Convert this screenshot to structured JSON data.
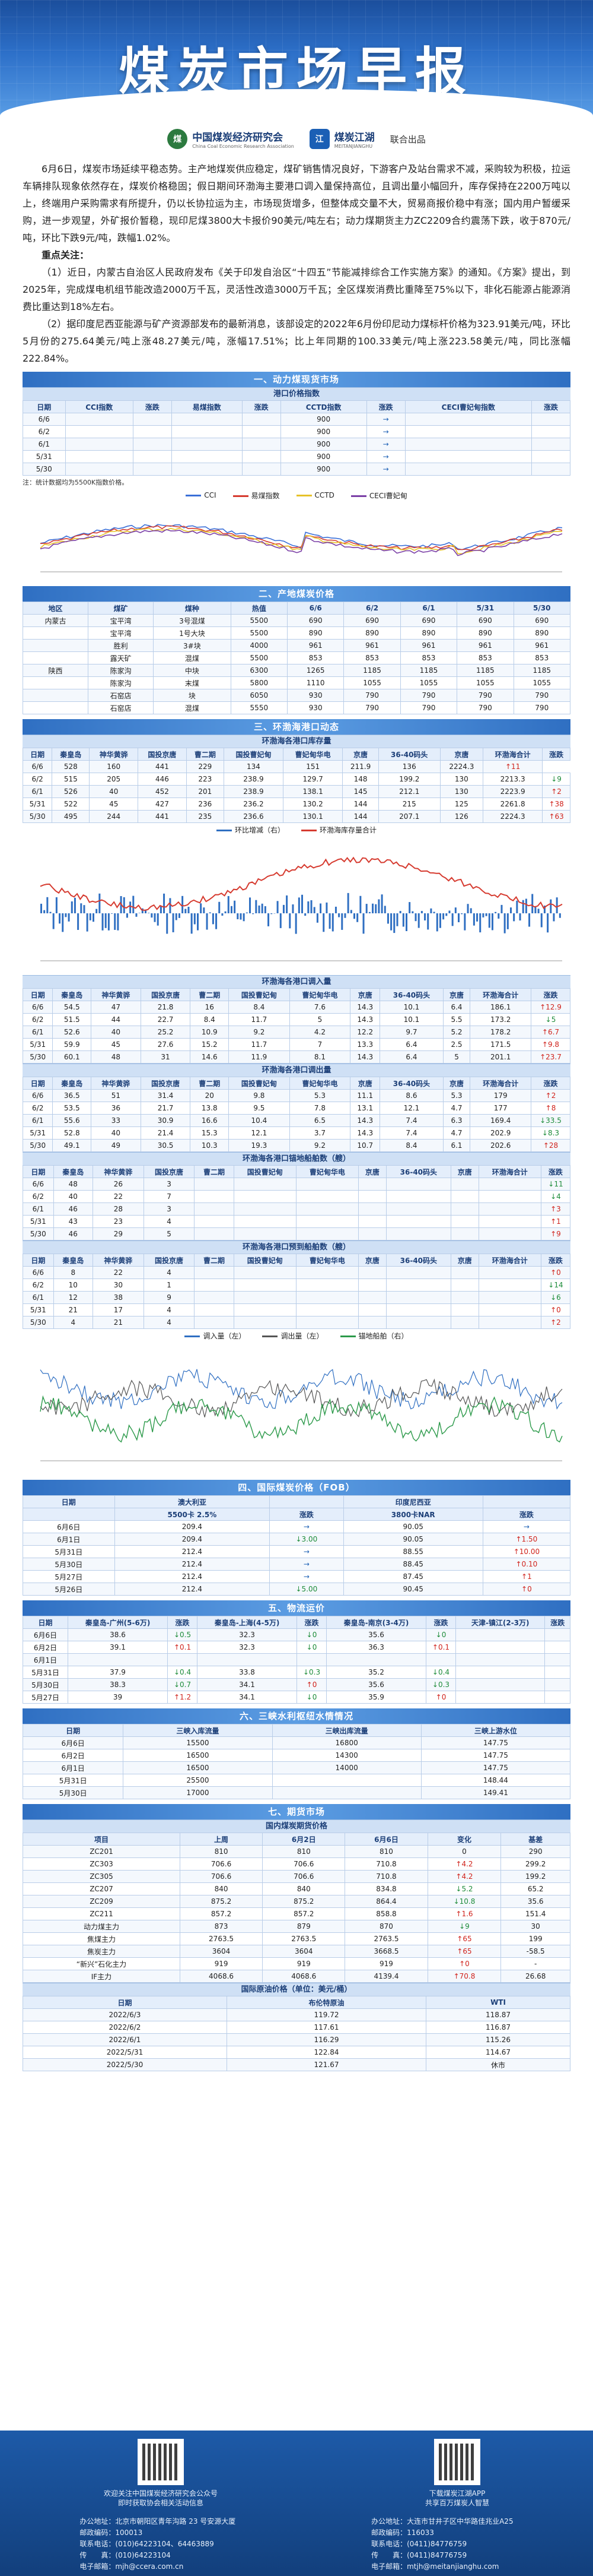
{
  "hero": {
    "title": "煤炭市场早报"
  },
  "logos": {
    "cceri_cn": "中国煤炭经济研究会",
    "cceri_en": "China Coal Economic Research Association",
    "mtjh_cn": "煤炭江湖",
    "mtjh_en": "MEITANJIANGHU",
    "joint": "联合出品"
  },
  "intro": {
    "p1": "6月6日，煤炭市场延续平稳态势。主产地煤炭供应稳定，煤矿销售情况良好，下游客户及站台需求不减，采购较为积极，拉运车辆排队现象依然存在，煤炭价格稳固；假日期间环渤海主要港口调入量保持高位，且调出量小幅回升，库存保持在2200万吨以上，终端用户采购需求有所提升，仍以长协拉运为主，市场现货增多，但整体成交量不大，贸易商报价稳中有涨；国内用户暂缓采购，进一步观望，外矿报价暂稳，现印尼煤3800大卡报价90美元/吨左右；动力煤期货主力ZC2209合约震荡下跌，收于870元/吨，环比下跌9元/吨，跌幅1.02%。",
    "kp_title": "重点关注：",
    "kp1": "（1）近日，内蒙古自治区人民政府发布《关于印发自治区“十四五”节能减排综合工作实施方案》的通知。《方案》提出，到2025年，完成煤电机组节能改造2000万千瓦，灵活性改造3000万千瓦；全区煤炭消费比重降至75%以下，非化石能源占能源消费比重达到18%左右。",
    "kp2": "（2）据印度尼西亚能源与矿产资源部发布的最新消息，该部设定的2022年6月份印尼动力煤标杆价格为323.91美元/吨，环比5月份的275.64美元/吨上涨48.27美元/吨，涨幅17.51%；比上年同期的100.33美元/吨上涨223.58美元/吨，同比涨幅222.84%。"
  },
  "sec1": {
    "title": "一、动力煤现货市场",
    "sub": "港口价格指数",
    "headers": [
      "日期",
      "CCI指数",
      "涨跌",
      "易煤指数",
      "涨跌",
      "CCTD指数",
      "涨跌",
      "CECI曹妃甸指数",
      "涨跌"
    ],
    "rows": [
      [
        "6/6",
        "",
        "",
        "",
        "",
        "900",
        "→",
        "",
        ""
      ],
      [
        "6/2",
        "",
        "",
        "",
        "",
        "900",
        "→",
        "",
        ""
      ],
      [
        "6/1",
        "",
        "",
        "",
        "",
        "900",
        "→",
        "",
        ""
      ],
      [
        "5/31",
        "",
        "",
        "",
        "",
        "900",
        "→",
        "",
        ""
      ],
      [
        "5/30",
        "",
        "",
        "",
        "",
        "900",
        "→",
        "",
        ""
      ]
    ],
    "note": "注：统计数据均为5500K指数价格。"
  },
  "chart1": {
    "legend": [
      "CCI",
      "易煤指数",
      "CCTD",
      "CECI曹妃甸"
    ],
    "colors": [
      "#3a6fd8",
      "#d63b30",
      "#e6c229",
      "#7b3fa6"
    ]
  },
  "sec2": {
    "title": "二、产地煤炭价格",
    "headers": [
      "地区",
      "煤矿",
      "煤种",
      "热值",
      "6/6",
      "6/2",
      "6/1",
      "5/31",
      "5/30"
    ],
    "rows": [
      [
        "内蒙古",
        "宝平湾",
        "3号混煤",
        "5500",
        "690",
        "690",
        "690",
        "690",
        "690"
      ],
      [
        "",
        "宝平湾",
        "1号大块",
        "5500",
        "890",
        "890",
        "890",
        "890",
        "890"
      ],
      [
        "",
        "胜利",
        "3#块",
        "4000",
        "961",
        "961",
        "961",
        "961",
        "961"
      ],
      [
        "",
        "露天矿",
        "混煤",
        "5500",
        "853",
        "853",
        "853",
        "853",
        "853"
      ],
      [
        "陕西",
        "陈家沟",
        "中块",
        "6300",
        "1265",
        "1185",
        "1185",
        "1185",
        "1185"
      ],
      [
        "",
        "陈家沟",
        "末煤",
        "5800",
        "1110",
        "1055",
        "1055",
        "1055",
        "1055"
      ],
      [
        "",
        "石窑店",
        "块",
        "6050",
        "930",
        "790",
        "790",
        "790",
        "790"
      ],
      [
        "",
        "石窑店",
        "混煤",
        "5550",
        "930",
        "790",
        "790",
        "790",
        "790"
      ]
    ]
  },
  "sec3": {
    "title": "三、环渤海港口动态",
    "sub1": "环渤海各港口库存量",
    "headers1": [
      "日期",
      "秦皇岛",
      "神华黄骅",
      "国投京唐",
      "曹二期",
      "国投曹妃甸",
      "曹妃甸华电",
      "京唐",
      "36-40码头",
      "京唐",
      "环渤海合计",
      "涨跌"
    ],
    "rows1": [
      [
        "6/6",
        "528",
        "160",
        "441",
        "229",
        "134",
        "151",
        "211.9",
        "136",
        "2224.3",
        "↑11"
      ],
      [
        "6/2",
        "515",
        "205",
        "446",
        "223",
        "238.9",
        "129.7",
        "148",
        "199.2",
        "130",
        "2213.3",
        "↓9"
      ],
      [
        "6/1",
        "526",
        "40",
        "452",
        "201",
        "238.9",
        "138.1",
        "145",
        "212.1",
        "130",
        "2223.9",
        "↑2"
      ],
      [
        "5/31",
        "522",
        "45",
        "427",
        "236",
        "236.2",
        "130.2",
        "144",
        "215",
        "125",
        "2261.8",
        "↑38"
      ],
      [
        "5/30",
        "495",
        "244",
        "441",
        "235",
        "236.6",
        "130.1",
        "144",
        "207.1",
        "126",
        "2224.3",
        "↑63"
      ]
    ],
    "chart2_legend": [
      "环比增减（右）",
      "环渤海库存量合计"
    ],
    "chart2_unit": "单位：万吨",
    "sub2": "环渤海各港口调入量",
    "rows2": [
      [
        "6/6",
        "54.5",
        "47",
        "21.8",
        "16",
        "8.4",
        "7.6",
        "14.3",
        "10.1",
        "6.4",
        "186.1",
        "↑12.9"
      ],
      [
        "6/2",
        "51.5",
        "44",
        "22.7",
        "8.4",
        "11.7",
        "5",
        "14.3",
        "10.1",
        "5.5",
        "173.2",
        "↓5"
      ],
      [
        "6/1",
        "52.6",
        "40",
        "25.2",
        "10.9",
        "9.2",
        "4.2",
        "12.2",
        "9.7",
        "5.2",
        "178.2",
        "↑6.7"
      ],
      [
        "5/31",
        "59.9",
        "45",
        "27.6",
        "15.2",
        "11.7",
        "7",
        "13.3",
        "6.4",
        "2.5",
        "171.5",
        "↑9.8"
      ],
      [
        "5/30",
        "60.1",
        "48",
        "31",
        "14.6",
        "11.9",
        "8.1",
        "14.3",
        "6.4",
        "5",
        "201.1",
        "↑23.7"
      ]
    ],
    "sub3": "环渤海各港口调出量",
    "rows3": [
      [
        "6/6",
        "36.5",
        "51",
        "31.4",
        "20",
        "9.8",
        "5.3",
        "11.1",
        "8.6",
        "5.3",
        "179",
        "↑2"
      ],
      [
        "6/2",
        "53.5",
        "36",
        "21.7",
        "13.8",
        "9.5",
        "7.8",
        "13.1",
        "12.1",
        "4.7",
        "177",
        "↑8"
      ],
      [
        "6/1",
        "55.6",
        "33",
        "30.9",
        "16.6",
        "10.4",
        "6.5",
        "14.3",
        "7.4",
        "6.3",
        "169.4",
        "↓33.5"
      ],
      [
        "5/31",
        "52.8",
        "40",
        "21.4",
        "15.3",
        "12.1",
        "3.7",
        "14.3",
        "7.4",
        "4.7",
        "202.9",
        "↓8.3"
      ],
      [
        "5/30",
        "49.1",
        "49",
        "30.5",
        "10.3",
        "19.3",
        "9.2",
        "10.7",
        "8.4",
        "6.1",
        "202.6",
        "↑28"
      ]
    ],
    "sub4": "环渤海各港口锚地船舶数（艘）",
    "rows4": [
      [
        "6/6",
        "48",
        "26",
        "3",
        "",
        "",
        "",
        "",
        "",
        "",
        "",
        "↓11"
      ],
      [
        "6/2",
        "40",
        "22",
        "7",
        "",
        "",
        "",
        "",
        "",
        "",
        "",
        "↓4"
      ],
      [
        "6/1",
        "46",
        "28",
        "3",
        "",
        "",
        "",
        "",
        "",
        "",
        "",
        "↑3"
      ],
      [
        "5/31",
        "43",
        "23",
        "4",
        "",
        "",
        "",
        "",
        "",
        "",
        "",
        "↑1"
      ],
      [
        "5/30",
        "46",
        "29",
        "5",
        "",
        "",
        "",
        "",
        "",
        "",
        "",
        "↑9"
      ]
    ],
    "sub5": "环渤海各港口预到船舶数（艘）",
    "rows5": [
      [
        "6/6",
        "8",
        "22",
        "4",
        "",
        "",
        "",
        "",
        "",
        "",
        "",
        "↑0"
      ],
      [
        "6/2",
        "10",
        "30",
        "1",
        "",
        "",
        "",
        "",
        "",
        "",
        "",
        "↓14"
      ],
      [
        "6/1",
        "12",
        "38",
        "9",
        "",
        "",
        "",
        "",
        "",
        "",
        "",
        "↓6"
      ],
      [
        "5/31",
        "21",
        "17",
        "4",
        "",
        "",
        "",
        "",
        "",
        "",
        "",
        "↑0"
      ],
      [
        "5/30",
        "4",
        "21",
        "4",
        "",
        "",
        "",
        "",
        "",
        "",
        "",
        "↑2"
      ]
    ],
    "chart3_legend": [
      "调入量（左）",
      "调出量（左）",
      "锚地船舶（右）"
    ],
    "chart3_unit": "单位：万吨，艘"
  },
  "sec4": {
    "title": "四、国际煤炭价格（FOB）",
    "headers": [
      "日期",
      "澳大利亚",
      "",
      "印度尼西亚",
      ""
    ],
    "subheaders": [
      "",
      "5500卡 2.5%",
      "涨跌",
      "3800卡NAR",
      "涨跌"
    ],
    "rows": [
      [
        "6月6日",
        "209.4",
        "→",
        "90.05",
        "→"
      ],
      [
        "6月1日",
        "209.4",
        "↓3.00",
        "90.05",
        "↑1.50"
      ],
      [
        "5月31日",
        "212.4",
        "→",
        "88.55",
        "↑10.00"
      ],
      [
        "5月30日",
        "212.4",
        "→",
        "88.45",
        "↑0.10"
      ],
      [
        "5月27日",
        "212.4",
        "→",
        "87.45",
        "↑1"
      ],
      [
        "5月26日",
        "212.4",
        "↓5.00",
        "90.45",
        "↑0"
      ]
    ]
  },
  "sec5": {
    "title": "五、物流运价",
    "headers": [
      "日期",
      "秦皇岛-广州(5-6万)",
      "涨跌",
      "秦皇岛-上海(4-5万)",
      "涨跌",
      "秦皇岛-南京(3-4万)",
      "涨跌",
      "天津-镇江(2-3万)",
      "涨跌"
    ],
    "rows": [
      [
        "6月6日",
        "38.6",
        "↓0.5",
        "32.3",
        "↓0",
        "35.6",
        "↓0",
        "",
        ""
      ],
      [
        "6月2日",
        "39.1",
        "↑0.1",
        "32.3",
        "↓0",
        "36.3",
        "↑0.1",
        "",
        ""
      ],
      [
        "6月1日",
        "",
        "",
        "",
        "",
        "",
        "",
        "",
        ""
      ],
      [
        "5月31日",
        "37.9",
        "↓0.4",
        "33.8",
        "↓0.3",
        "35.2",
        "↓0.4",
        "",
        ""
      ],
      [
        "5月30日",
        "38.3",
        "↓0.7",
        "34.1",
        "↑0",
        "35.6",
        "↓0.3",
        "",
        ""
      ],
      [
        "5月27日",
        "39",
        "↑1.2",
        "34.1",
        "↓0",
        "35.9",
        "↑0",
        "",
        ""
      ]
    ]
  },
  "sec6": {
    "title": "六、三峡水利枢纽水情情况",
    "headers": [
      "日期",
      "三峡入库流量",
      "三峡出库流量",
      "三峡上游水位"
    ],
    "rows": [
      [
        "6月6日",
        "15500",
        "16800",
        "147.75"
      ],
      [
        "6月2日",
        "16500",
        "14300",
        "147.75"
      ],
      [
        "6月1日",
        "16500",
        "14000",
        "147.75"
      ],
      [
        "5月31日",
        "25500",
        "",
        "148.44"
      ],
      [
        "5月30日",
        "17000",
        "",
        "149.41"
      ]
    ]
  },
  "sec7": {
    "title": "七、期货市场",
    "sub1": "国内煤炭期货价格",
    "headers1": [
      "项目",
      "上周",
      "6月2日",
      "6月6日",
      "变化",
      "基差"
    ],
    "rows1": [
      [
        "ZC201",
        "810",
        "810",
        "810",
        "0",
        "290"
      ],
      [
        "ZC303",
        "706.6",
        "706.6",
        "710.8",
        "↑4.2",
        "299.2"
      ],
      [
        "ZC305",
        "706.6",
        "706.6",
        "710.8",
        "↑4.2",
        "199.2"
      ],
      [
        "ZC207",
        "840",
        "840",
        "834.8",
        "↓5.2",
        "65.2"
      ],
      [
        "ZC209",
        "875.2",
        "875.2",
        "864.4",
        "↓10.8",
        "35.6"
      ],
      [
        "ZC211",
        "857.2",
        "857.2",
        "858.8",
        "↑1.6",
        "151.4"
      ],
      [
        "动力煤主力",
        "873",
        "879",
        "870",
        "↓9",
        "30"
      ],
      [
        "焦煤主力",
        "2763.5",
        "2763.5",
        "2763.5",
        "↑65",
        "199"
      ],
      [
        "焦炭主力",
        "3604",
        "3604",
        "3668.5",
        "↑65",
        "-58.5"
      ],
      [
        "“新兴”石化主力",
        "919",
        "919",
        "919",
        "↑0",
        "-"
      ],
      [
        "IF主力",
        "4068.6",
        "4068.6",
        "4139.4",
        "↑70.8",
        "26.68"
      ]
    ],
    "sub2": "国际原油价格（单位：美元/桶）",
    "headers2": [
      "日期",
      "布伦特原油",
      "WTI"
    ],
    "rows2": [
      [
        "2022/6/3",
        "119.72",
        "118.87"
      ],
      [
        "2022/6/2",
        "117.61",
        "116.87"
      ],
      [
        "2022/6/1",
        "116.29",
        "115.26"
      ],
      [
        "2022/5/31",
        "122.84",
        "114.67"
      ],
      [
        "2022/5/30",
        "121.67",
        "休市"
      ]
    ]
  },
  "footer": {
    "qr1_caption": "欢迎关注中国煤炭经济研究会公众号\n即时获取协会相关活动信息",
    "qr2_caption": "下载煤炭江湖APP\n共享百万煤炭人智慧",
    "c1": [
      "办公地址：北京市朝阳区青年沟路 23 号安源大厦",
      "邮政编码：100013",
      "联系电话：(010)64223104、64463889",
      "传　　真：(010)64223104",
      "电子邮箱：mjh@ccera.com.cn"
    ],
    "c2": [
      "办公地址：大连市甘井子区中华路佳兆业A25",
      "邮政编码：116033",
      "联系电话：(0411)84776759",
      "传　　真：(0411)84776759",
      "电子邮箱：mtjh@meitanjianghu.com"
    ],
    "site1": "www.ccera.com.cn",
    "site2": "www.meitanjianghu.com"
  }
}
